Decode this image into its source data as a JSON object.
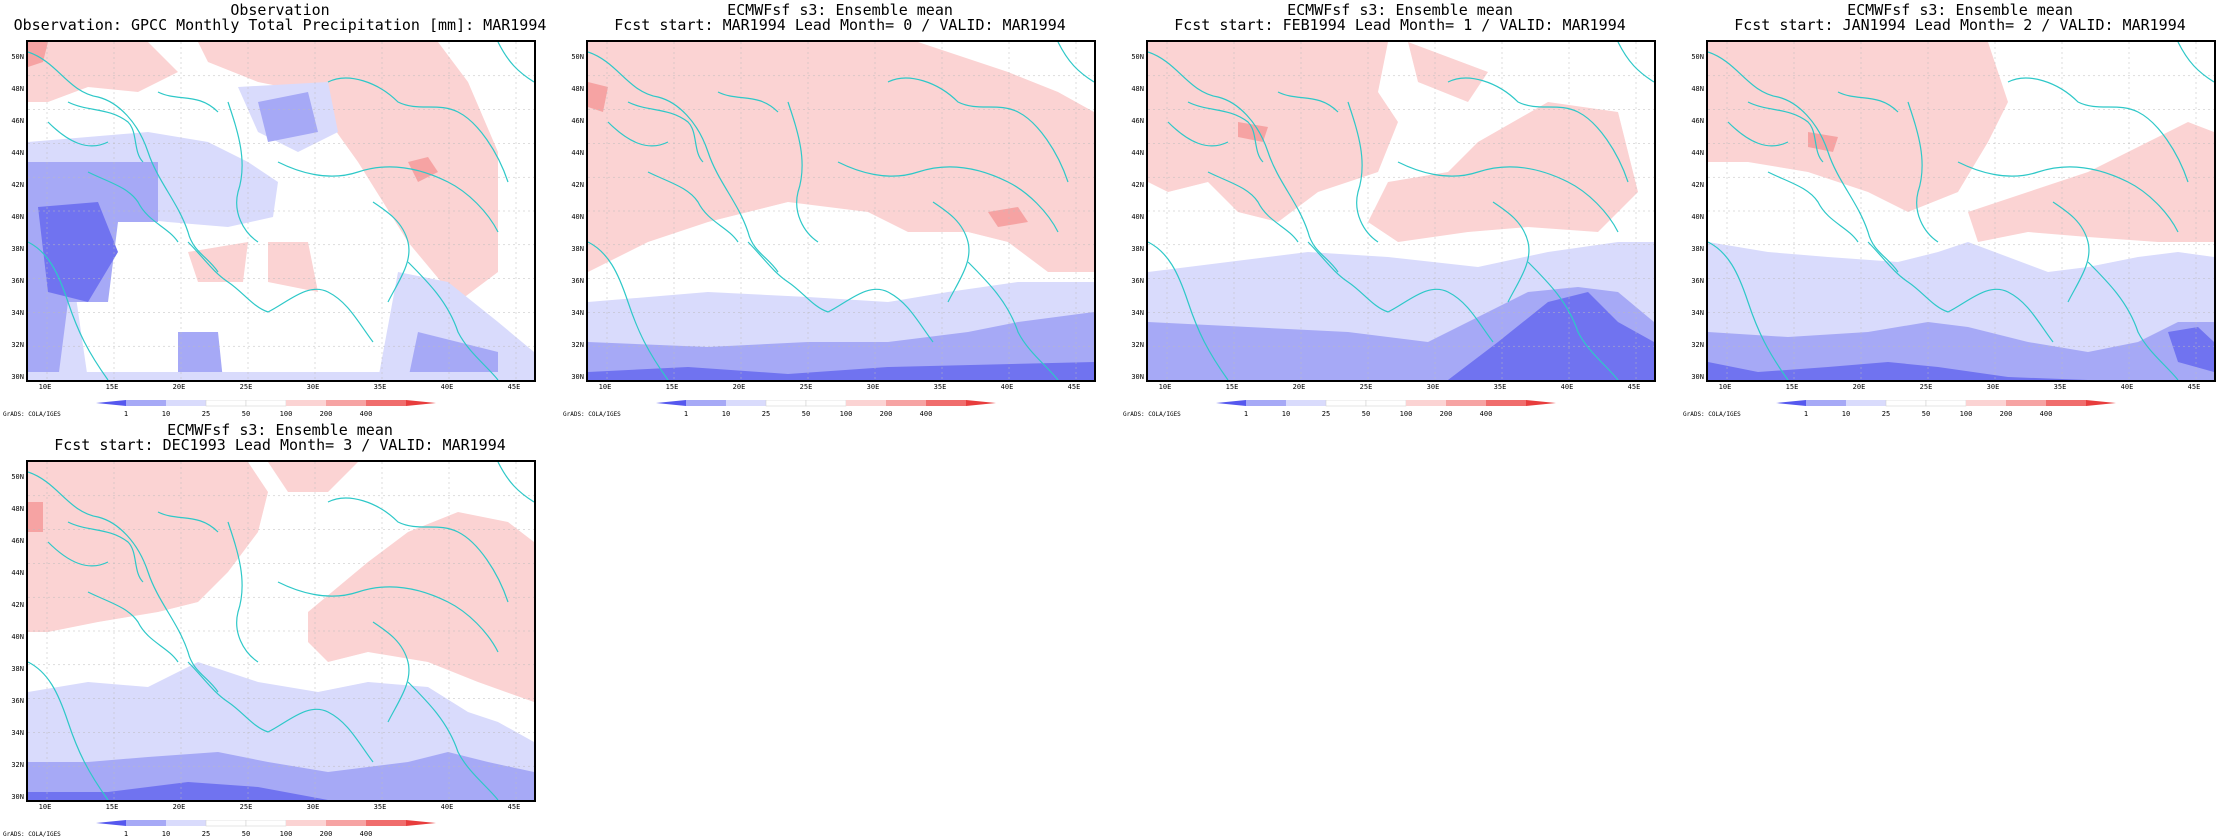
{
  "colors": {
    "coast": "#2ec8c8",
    "blue_light": "#d9dbfc",
    "blue_mid": "#a6a9f6",
    "blue_dark": "#7073f0",
    "red_light": "#fbd3d3",
    "red_mid": "#f6a3a3",
    "red_dark": "#f06d6d",
    "grid": "#bbbbbb"
  },
  "axes": {
    "y_labels": [
      "50N",
      "48N",
      "46N",
      "44N",
      "42N",
      "40N",
      "38N",
      "36N",
      "34N",
      "32N",
      "30N"
    ],
    "x_labels": [
      "10E",
      "15E",
      "20E",
      "25E",
      "30E",
      "35E",
      "40E",
      "45E"
    ],
    "lat_range": [
      30,
      51
    ],
    "lon_range": [
      8,
      46
    ]
  },
  "colorbar": {
    "labels": [
      "1",
      "10",
      "25",
      "50",
      "100",
      "200",
      "400"
    ]
  },
  "credit": "GrADS: COLA/IGES",
  "panels": [
    {
      "id": "obs",
      "title1": "Observation",
      "title2": "Observation: GPCC Monthly Total Precipitation [mm]: MAR1994"
    },
    {
      "id": "lead0",
      "title1": "ECMWFsf s3: Ensemble mean",
      "title2": "Fcst start: MAR1994  Lead Month= 0 / VALID: MAR1994"
    },
    {
      "id": "lead1",
      "title1": "ECMWFsf s3: Ensemble mean",
      "title2": "Fcst start: FEB1994  Lead Month= 1 / VALID: MAR1994"
    },
    {
      "id": "lead2",
      "title1": "ECMWFsf s3: Ensemble mean",
      "title2": "Fcst start: JAN1994  Lead Month= 2 / VALID: MAR1994"
    },
    {
      "id": "lead3",
      "title1": "ECMWFsf s3: Ensemble mean",
      "title2": "Fcst start: DEC1993  Lead Month= 3 / VALID: MAR1994"
    }
  ]
}
